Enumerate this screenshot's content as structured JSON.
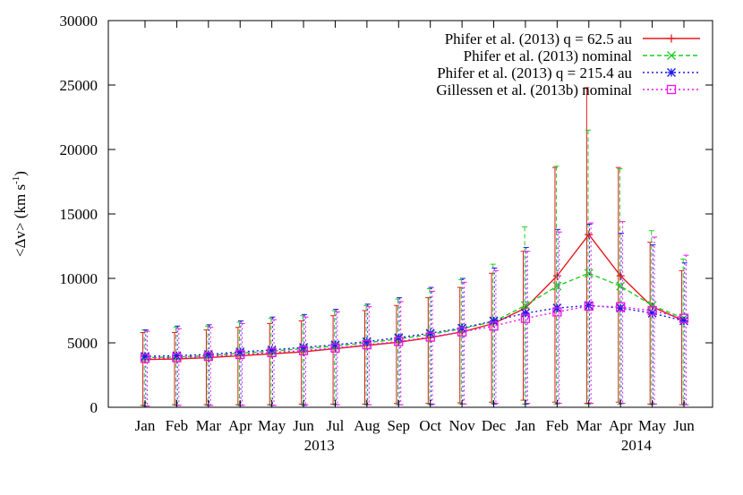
{
  "chart_data": {
    "type": "line",
    "title": "",
    "xlabel": "",
    "ylabel_main": "<Δv> (km s",
    "ylabel_sup": "-1",
    "ylabel_end": ")",
    "ylim": [
      0,
      30000
    ],
    "yticks": [
      0,
      5000,
      10000,
      15000,
      20000,
      25000,
      30000
    ],
    "grid": false,
    "legend_position": "top-right",
    "categories": [
      "Jan",
      "Feb",
      "Mar",
      "Apr",
      "May",
      "Jun",
      "Jul",
      "Aug",
      "Sep",
      "Oct",
      "Nov",
      "Dec",
      "Jan",
      "Feb",
      "Mar",
      "Apr",
      "May",
      "Jun"
    ],
    "year_labels": [
      {
        "text": "2013",
        "index": 5.5
      },
      {
        "text": "2014",
        "index": 15.5
      }
    ],
    "series": [
      {
        "name": "Phifer et al. (2013) q = 62.5 au",
        "color": "#e41a1c",
        "marker": "plus",
        "dash": "solid",
        "values": [
          3700,
          3750,
          3850,
          4000,
          4150,
          4300,
          4550,
          4800,
          5050,
          5400,
          5850,
          6500,
          7700,
          10200,
          13400,
          10200,
          7800,
          6700
        ],
        "err_high": [
          5800,
          5800,
          6000,
          6200,
          6500,
          6700,
          7100,
          7500,
          7900,
          8500,
          9300,
          10400,
          12100,
          18600,
          24800,
          18600,
          12800,
          10600
        ],
        "err_low": [
          150,
          200,
          200,
          200,
          200,
          250,
          250,
          250,
          300,
          300,
          350,
          400,
          550,
          400,
          300,
          400,
          250,
          200
        ]
      },
      {
        "name": "Phifer et al. (2013) nominal",
        "color": "#22cc22",
        "marker": "cross",
        "dash": "dashed",
        "values": [
          3850,
          3900,
          4000,
          4200,
          4350,
          4550,
          4750,
          5000,
          5300,
          5650,
          6100,
          6650,
          7900,
          9400,
          10400,
          9400,
          7900,
          6900
        ],
        "err_high": [
          6000,
          6200,
          6300,
          6600,
          6900,
          7100,
          7500,
          7900,
          8400,
          9200,
          9900,
          11100,
          14000,
          18700,
          21500,
          18500,
          13700,
          11500
        ],
        "err_low": [
          100,
          150,
          150,
          150,
          150,
          200,
          200,
          200,
          200,
          250,
          250,
          300,
          250,
          250,
          250,
          250,
          200,
          200
        ]
      },
      {
        "name": "Phifer et al. (2013) q = 215.4 au",
        "color": "#1a1aee",
        "marker": "star",
        "dash": "dotted",
        "values": [
          3950,
          4000,
          4100,
          4300,
          4450,
          4650,
          4850,
          5100,
          5400,
          5750,
          6150,
          6700,
          7300,
          7700,
          7900,
          7700,
          7300,
          6700
        ],
        "err_high": [
          6000,
          6300,
          6400,
          6700,
          7000,
          7200,
          7600,
          8000,
          8500,
          9300,
          10000,
          10800,
          12400,
          13800,
          14200,
          13500,
          12600,
          11200
        ],
        "err_low": [
          100,
          150,
          150,
          150,
          150,
          150,
          200,
          200,
          200,
          200,
          250,
          250,
          250,
          300,
          300,
          300,
          250,
          200
        ]
      },
      {
        "name": "Gillessen et al. (2013b) nominal",
        "color": "#ee11ee",
        "marker": "square",
        "dash": "dotted",
        "values": [
          3800,
          3850,
          3950,
          4100,
          4250,
          4400,
          4600,
          4850,
          5100,
          5450,
          5850,
          6300,
          6900,
          7400,
          7850,
          7800,
          7500,
          6900
        ],
        "err_high": [
          5900,
          6100,
          6200,
          6500,
          6800,
          7000,
          7400,
          7800,
          8200,
          9000,
          9700,
          10600,
          12100,
          13600,
          14300,
          14400,
          13200,
          11800
        ],
        "err_low": [
          100,
          150,
          150,
          150,
          150,
          200,
          200,
          200,
          200,
          250,
          250,
          300,
          300,
          300,
          300,
          300,
          250,
          200
        ]
      }
    ]
  }
}
